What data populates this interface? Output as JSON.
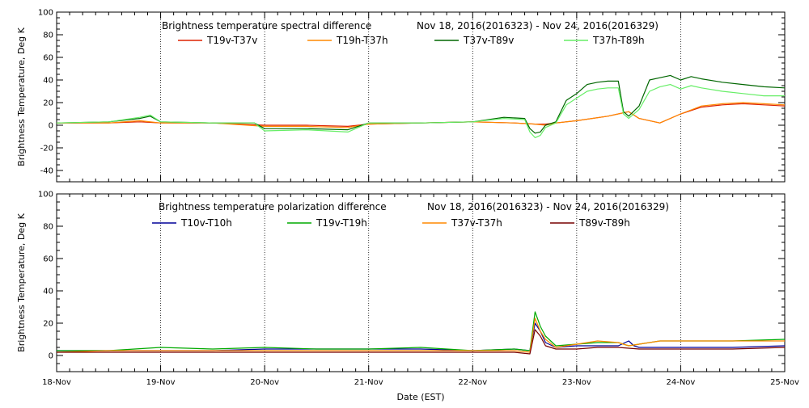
{
  "xlabel": "Date (EST)",
  "x_ticks": [
    "18-Nov",
    "19-Nov",
    "20-Nov",
    "21-Nov",
    "22-Nov",
    "23-Nov",
    "24-Nov",
    "25-Nov"
  ],
  "chart_data": [
    {
      "type": "line",
      "title": "Brightness temperature spectral difference",
      "date_range": "Nov 18, 2016(2016323) - Nov 24, 2016(2016329)",
      "ylabel": "Brightness Temperature, Deg K",
      "xlabel": "",
      "xlim": [
        0,
        7
      ],
      "ylim": [
        -50,
        100
      ],
      "y_ticks": [
        "-40",
        "-20",
        "0",
        "20",
        "40",
        "60",
        "80",
        "100"
      ],
      "grid": "vertical dotted at each day",
      "legend_position": "top",
      "series": [
        {
          "name": "T19v-T37v",
          "color": "#dd2200",
          "x": [
            0,
            0.5,
            0.8,
            1.0,
            1.5,
            2.0,
            2.4,
            2.8,
            3.0,
            3.5,
            4.0,
            4.4,
            4.6,
            4.7,
            4.8,
            5.0,
            5.3,
            5.5,
            5.6,
            5.8,
            6.0,
            6.2,
            6.4,
            6.6,
            6.8,
            7.0
          ],
          "y": [
            2,
            2,
            3,
            2,
            2,
            0,
            0,
            -1,
            1,
            2,
            3,
            2,
            1,
            1,
            2,
            4,
            8,
            12,
            6,
            2,
            10,
            16,
            18,
            19,
            18,
            17
          ]
        },
        {
          "name": "T19h-T37h",
          "color": "#ff8800",
          "x": [
            0,
            0.5,
            0.8,
            1.0,
            1.5,
            2.0,
            2.4,
            2.8,
            3.0,
            3.5,
            4.0,
            4.4,
            4.6,
            4.7,
            4.8,
            5.0,
            5.3,
            5.5,
            5.6,
            5.8,
            6.0,
            6.2,
            6.4,
            6.6,
            6.8,
            7.0
          ],
          "y": [
            2,
            2,
            4,
            2,
            2,
            -1,
            -1,
            -2,
            1,
            2,
            3,
            2,
            1,
            0,
            2,
            4,
            8,
            12,
            6,
            2,
            10,
            17,
            19,
            20,
            19,
            18
          ]
        },
        {
          "name": "T37v-T89v",
          "color": "#006600",
          "x": [
            0,
            0.5,
            0.8,
            0.9,
            1.0,
            1.5,
            1.9,
            2.0,
            2.4,
            2.8,
            3.0,
            3.5,
            4.0,
            4.3,
            4.5,
            4.55,
            4.6,
            4.65,
            4.7,
            4.8,
            4.9,
            5.0,
            5.1,
            5.2,
            5.3,
            5.4,
            5.45,
            5.5,
            5.6,
            5.7,
            5.8,
            5.9,
            6.0,
            6.1,
            6.2,
            6.4,
            6.6,
            6.8,
            7.0
          ],
          "y": [
            2,
            3,
            6,
            8,
            3,
            2,
            2,
            -3,
            -3,
            -4,
            2,
            2,
            3,
            7,
            6,
            -3,
            -7,
            -6,
            0,
            3,
            22,
            28,
            36,
            38,
            39,
            39,
            12,
            8,
            17,
            40,
            42,
            44,
            40,
            43,
            41,
            38,
            36,
            34,
            33
          ]
        },
        {
          "name": "T37h-T89h",
          "color": "#66ee66",
          "x": [
            0,
            0.5,
            0.8,
            0.9,
            1.0,
            1.5,
            1.9,
            2.0,
            2.4,
            2.8,
            3.0,
            3.5,
            4.0,
            4.3,
            4.5,
            4.55,
            4.6,
            4.65,
            4.7,
            4.8,
            4.9,
            5.0,
            5.1,
            5.2,
            5.3,
            5.4,
            5.45,
            5.5,
            5.6,
            5.7,
            5.8,
            5.9,
            6.0,
            6.1,
            6.2,
            6.4,
            6.6,
            6.8,
            7.0
          ],
          "y": [
            2,
            3,
            7,
            9,
            3,
            2,
            2,
            -5,
            -4,
            -6,
            2,
            2,
            3,
            6,
            5,
            -6,
            -11,
            -9,
            -2,
            2,
            18,
            24,
            30,
            32,
            33,
            33,
            10,
            6,
            14,
            30,
            34,
            36,
            32,
            35,
            33,
            30,
            28,
            26,
            26
          ]
        }
      ]
    },
    {
      "type": "line",
      "title": "Brightness temperature polarization difference",
      "date_range": "Nov 18, 2016(2016323) - Nov 24, 2016(2016329)",
      "ylabel": "Brightness Temperature, Deg K",
      "xlabel": "Date (EST)",
      "xlim": [
        0,
        7
      ],
      "ylim": [
        -10,
        100
      ],
      "y_ticks": [
        "0",
        "20",
        "40",
        "60",
        "80",
        "100"
      ],
      "grid": "vertical dotted at each day",
      "legend_position": "top",
      "series": [
        {
          "name": "T10v-T10h",
          "color": "#000099",
          "x": [
            0,
            0.5,
            1.0,
            1.5,
            2.0,
            2.5,
            3.0,
            3.5,
            4.0,
            4.4,
            4.55,
            4.6,
            4.65,
            4.7,
            4.8,
            5.0,
            5.2,
            5.4,
            5.5,
            5.55,
            5.6,
            5.8,
            6.0,
            6.5,
            7.0
          ],
          "y": [
            3,
            3,
            3,
            3,
            4,
            4,
            4,
            4,
            3,
            4,
            3,
            20,
            15,
            8,
            5,
            6,
            6,
            6,
            9,
            6,
            5,
            5,
            5,
            5,
            6
          ]
        },
        {
          "name": "T19v-T19h",
          "color": "#00aa00",
          "x": [
            0,
            0.5,
            1.0,
            1.5,
            2.0,
            2.5,
            3.0,
            3.5,
            4.0,
            4.4,
            4.55,
            4.6,
            4.65,
            4.7,
            4.8,
            5.0,
            5.2,
            5.4,
            5.5,
            5.6,
            5.8,
            6.0,
            6.5,
            7.0
          ],
          "y": [
            3,
            3,
            5,
            4,
            5,
            4,
            4,
            5,
            3,
            4,
            3,
            27,
            18,
            12,
            6,
            7,
            8,
            8,
            6,
            7,
            9,
            9,
            9,
            10
          ]
        },
        {
          "name": "T37v-T37h",
          "color": "#ff8800",
          "x": [
            0,
            0.5,
            1.0,
            1.5,
            2.0,
            2.5,
            3.0,
            3.5,
            4.0,
            4.4,
            4.55,
            4.6,
            4.65,
            4.7,
            4.8,
            5.0,
            5.2,
            5.4,
            5.5,
            5.6,
            5.8,
            6.0,
            6.5,
            7.0
          ],
          "y": [
            2,
            3,
            3,
            3,
            3,
            3,
            3,
            3,
            3,
            3,
            2,
            23,
            15,
            10,
            5,
            7,
            9,
            8,
            6,
            7,
            9,
            9,
            9,
            9
          ]
        },
        {
          "name": "T89v-T89h",
          "color": "#770000",
          "x": [
            0,
            0.5,
            1.0,
            1.5,
            2.0,
            2.5,
            3.0,
            3.5,
            4.0,
            4.4,
            4.55,
            4.6,
            4.65,
            4.7,
            4.8,
            5.0,
            5.2,
            5.4,
            5.6,
            5.8,
            6.0,
            6.5,
            7.0
          ],
          "y": [
            2,
            2,
            2,
            2,
            2,
            2,
            2,
            2,
            2,
            2,
            1,
            16,
            12,
            6,
            4,
            4,
            5,
            5,
            4,
            4,
            4,
            4,
            5
          ]
        }
      ]
    }
  ]
}
